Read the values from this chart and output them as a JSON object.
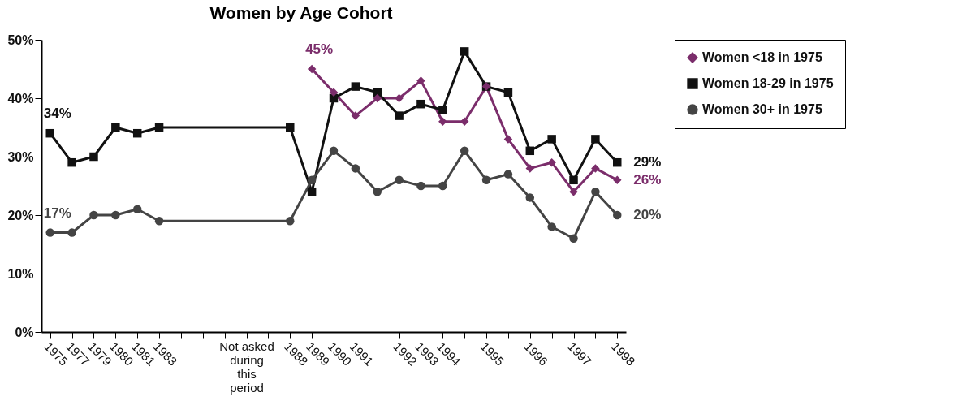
{
  "chart_data": {
    "type": "line",
    "title": "Women by Age Cohort",
    "categories": [
      "1975",
      "1977",
      "1979",
      "1980",
      "1981",
      "1983",
      "Not asked during this period",
      "1988",
      "1989",
      "1990",
      "1991",
      null,
      "1992",
      "1993",
      "1994",
      null,
      "1995",
      null,
      "1996",
      null,
      "1997",
      null,
      "1998"
    ],
    "series": [
      {
        "name": "Women <18 in 1975",
        "color": "#7b2d6b",
        "marker": "diamond",
        "values": [
          null,
          null,
          null,
          null,
          null,
          null,
          null,
          null,
          45,
          41,
          37,
          40,
          40,
          43,
          36,
          36,
          42,
          33,
          28,
          29,
          24,
          28,
          26
        ]
      },
      {
        "name": "Women 18-29 in 1975",
        "color": "#111111",
        "marker": "square",
        "values": [
          34,
          29,
          30,
          35,
          34,
          35,
          null,
          35,
          24,
          40,
          42,
          41,
          37,
          39,
          38,
          48,
          42,
          41,
          31,
          33,
          26,
          33,
          29
        ]
      },
      {
        "name": "Women 30+ in 1975",
        "color": "#444444",
        "marker": "circle",
        "values": [
          17,
          17,
          20,
          20,
          21,
          19,
          null,
          19,
          26,
          31,
          28,
          24,
          26,
          25,
          25,
          31,
          26,
          27,
          23,
          18,
          16,
          24,
          20
        ]
      }
    ],
    "ylim": [
      0,
      50
    ],
    "yticks": [
      {
        "value": 0,
        "label": "0%"
      },
      {
        "value": 10,
        "label": "10%"
      },
      {
        "value": 20,
        "label": "20%"
      },
      {
        "value": 30,
        "label": "30%"
      },
      {
        "value": 40,
        "label": "40%"
      },
      {
        "value": 50,
        "label": "50%"
      }
    ],
    "grid": false,
    "legend": "right",
    "line_style": "solid",
    "annotations": [
      {
        "text": "34%",
        "x": "1975",
        "y": 34
      },
      {
        "text": "17%",
        "x": "1975",
        "y": 17
      },
      {
        "text": "45%",
        "x": "1989",
        "y": 45
      },
      {
        "text": "29%",
        "x": "1998",
        "y": 29
      },
      {
        "text": "26%",
        "x": "1998",
        "y": 26
      },
      {
        "text": "20%",
        "x": "1998",
        "y": 20
      }
    ]
  }
}
